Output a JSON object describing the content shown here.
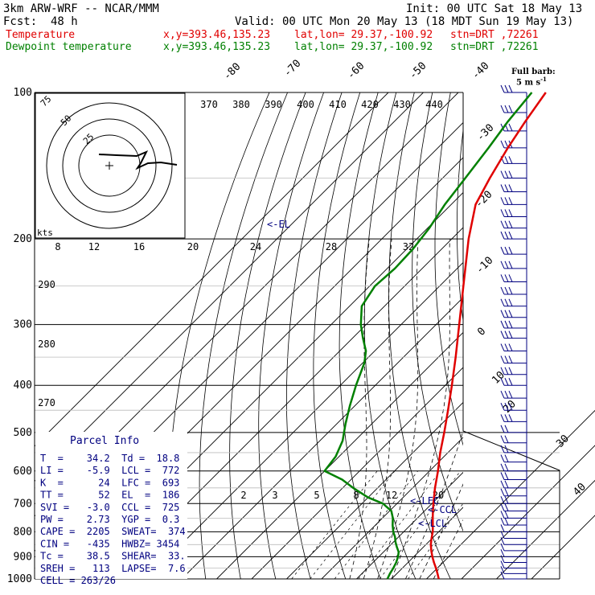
{
  "header": {
    "model": "3km ARW-WRF -- NCAR/MMM",
    "init": "Init: 00 UTC Sat 18 May 13",
    "fcst_label": "Fcst:",
    "fcst_value": "48 h",
    "valid": "Valid: 00 UTC Mon 20 May 13 (18 MDT Sun 19 May 13)",
    "temp_label": "Temperature",
    "dew_label": "Dewpoint temperature",
    "xy": "x,y=393.46,135.23",
    "latlon": "lat,lon= 29.37,-100.92",
    "stn": "stn=DRT ,72261"
  },
  "barb_legend": {
    "line1": "Full barb:",
    "line2": "5 m s",
    "sup": "-1"
  },
  "hodograph": {
    "rings": [
      "25",
      "50",
      "75"
    ],
    "units": "kts"
  },
  "parcel_info": {
    "title": "Parcel Info",
    "rows": [
      "T  =    34.2  Td =  18.8",
      "LI =    -5.9  LCL =  772",
      "K  =      24  LFC =  693",
      "TT =      52  EL  =  186",
      "SVI =   -3.0  CCL =  725",
      "PW =    2.73  YGP =  0.3",
      "CAPE =  2205  SWEAT=  374",
      "CIN =   -435  HWBZ= 3454",
      "Tc =    38.5  SHEAR=  33.",
      "SREH =   113  LAPSE=  7.6",
      "CELL = 263/26"
    ]
  },
  "level_labels": {
    "el": "EL",
    "lfc": "LFC",
    "ccl": "CCL",
    "lcl": "LCL"
  },
  "chart_data": {
    "type": "line",
    "y_axis": {
      "scale": "log-pressure",
      "range_hPa": [
        1000,
        100
      ],
      "ticks": [
        "100",
        "200",
        "300",
        "400",
        "500",
        "600",
        "700",
        "800",
        "900",
        "1000"
      ]
    },
    "isotherm_labels": [
      "-80",
      "-70",
      "-60",
      "-50",
      "-40",
      "-30",
      "-20",
      "-10",
      "0",
      "10",
      "20",
      "30",
      "40"
    ],
    "theta_labels": [
      "370",
      "380",
      "390",
      "400",
      "410",
      "420",
      "430",
      "440"
    ],
    "theta_left_labels": [
      "290",
      "280",
      "270"
    ],
    "mixing_ratio_labels": [
      "8",
      "12",
      "16",
      "20",
      "24",
      "28",
      "32"
    ],
    "mixing_ratio_low_labels": [
      "2",
      "3",
      "5",
      "8",
      "12",
      "20"
    ],
    "wind_barb_levels_hPa": [
      100,
      110,
      120,
      130,
      140,
      150,
      160,
      170,
      180,
      190,
      200,
      215,
      230,
      245,
      260,
      275,
      290,
      305,
      320,
      340,
      360,
      380,
      400,
      425,
      450,
      475,
      500,
      525,
      550,
      575,
      600,
      625,
      650,
      675,
      700,
      725,
      750,
      775,
      800,
      825,
      850,
      875,
      900,
      925,
      950,
      975,
      1000
    ],
    "series": [
      {
        "name": "Temperature",
        "color": "#e00000",
        "points_p_T": [
          [
            1000,
            33.5
          ],
          [
            975,
            31.6
          ],
          [
            950,
            29.6
          ],
          [
            925,
            27.4
          ],
          [
            900,
            25.3
          ],
          [
            875,
            23.3
          ],
          [
            850,
            21.4
          ],
          [
            825,
            19.8
          ],
          [
            800,
            18.3
          ],
          [
            775,
            16.4
          ],
          [
            750,
            14.4
          ],
          [
            725,
            12.4
          ],
          [
            700,
            10.4
          ],
          [
            650,
            6.4
          ],
          [
            600,
            2.4
          ],
          [
            550,
            -2.2
          ],
          [
            500,
            -6.8
          ],
          [
            450,
            -12.1
          ],
          [
            400,
            -18.1
          ],
          [
            350,
            -25.1
          ],
          [
            300,
            -33.4
          ],
          [
            250,
            -43.2
          ],
          [
            200,
            -55.2
          ],
          [
            170,
            -63.0
          ],
          [
            150,
            -66.5
          ],
          [
            130,
            -70.0
          ],
          [
            115,
            -72.5
          ],
          [
            100,
            -75.0
          ]
        ]
      },
      {
        "name": "Dewpoint temperature",
        "color": "#008000",
        "points_p_T": [
          [
            1000,
            18.8
          ],
          [
            975,
            18.0
          ],
          [
            950,
            17.4
          ],
          [
            925,
            16.6
          ],
          [
            900,
            15.5
          ],
          [
            880,
            14.3
          ],
          [
            860,
            12.4
          ],
          [
            840,
            10.6
          ],
          [
            820,
            9.0
          ],
          [
            800,
            7.0
          ],
          [
            775,
            4.9
          ],
          [
            750,
            3.0
          ],
          [
            725,
            0.5
          ],
          [
            700,
            -4.0
          ],
          [
            680,
            -10.0
          ],
          [
            650,
            -17.0
          ],
          [
            625,
            -22.5
          ],
          [
            600,
            -30.0
          ],
          [
            560,
            -31.0
          ],
          [
            520,
            -33.5
          ],
          [
            480,
            -37.5
          ],
          [
            440,
            -41.5
          ],
          [
            400,
            -45.5
          ],
          [
            360,
            -49.5
          ],
          [
            340,
            -52.5
          ],
          [
            320,
            -57.0
          ],
          [
            300,
            -61.5
          ],
          [
            275,
            -66.5
          ],
          [
            250,
            -68.5
          ],
          [
            230,
            -67.8
          ],
          [
            210,
            -68.2
          ],
          [
            190,
            -69.5
          ],
          [
            170,
            -71.8
          ],
          [
            150,
            -73.5
          ],
          [
            130,
            -75.5
          ],
          [
            115,
            -77.5
          ],
          [
            100,
            -79.0
          ]
        ]
      }
    ]
  }
}
